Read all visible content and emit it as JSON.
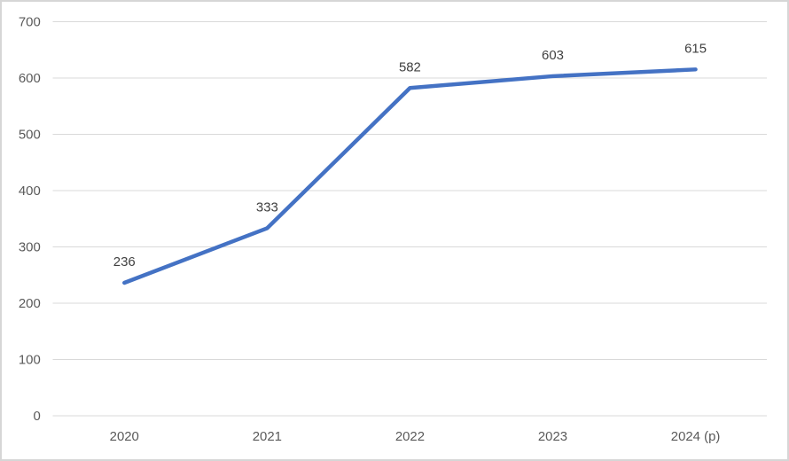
{
  "chart_data": {
    "type": "line",
    "categories": [
      "2020",
      "2021",
      "2022",
      "2023",
      "2024 (p)"
    ],
    "series": [
      {
        "name": "series-1",
        "values": [
          236,
          333,
          582,
          603,
          615
        ]
      }
    ],
    "data_labels": [
      "236",
      "333",
      "582",
      "603",
      "615"
    ],
    "y_tick_labels": [
      "0",
      "100",
      "200",
      "300",
      "400",
      "500",
      "600",
      "700"
    ],
    "title": "",
    "xlabel": "",
    "ylabel": "",
    "ylim": [
      0,
      700
    ],
    "ytick_step": 100,
    "grid": true,
    "legend": false
  },
  "style": {
    "line_color": "#4472C4",
    "grid_color": "#D9D9D9",
    "axis_text_color": "#595959",
    "data_label_color": "#404040",
    "background_color": "#FFFFFF",
    "border_color": "#D6D6D6"
  }
}
